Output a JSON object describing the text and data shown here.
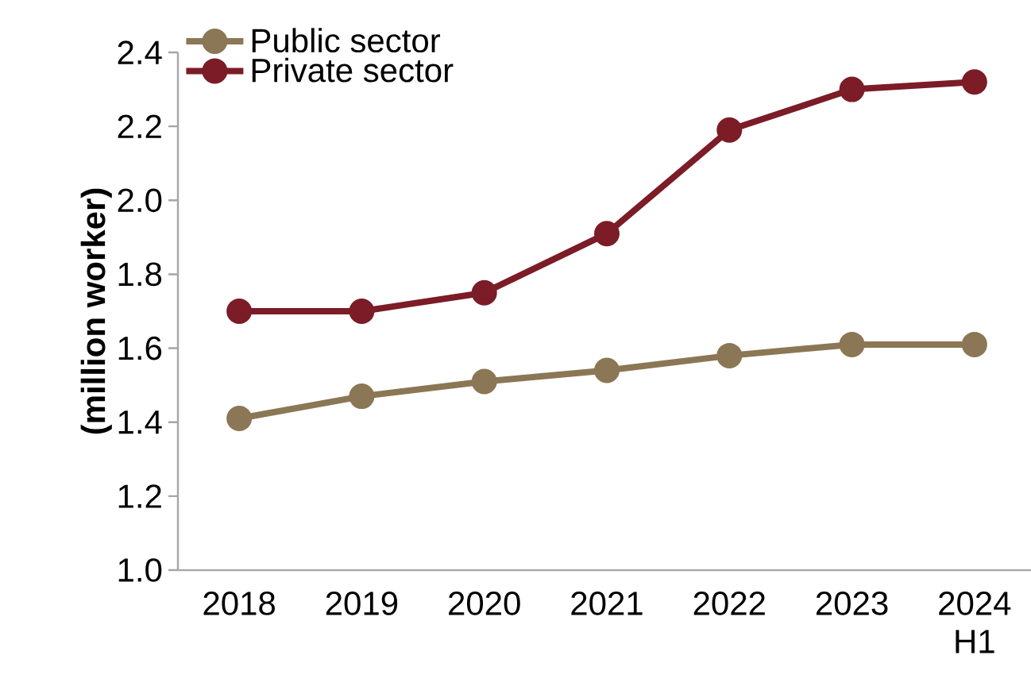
{
  "chart_data": {
    "type": "line",
    "ylabel": "(million worker)",
    "categories": [
      "2018",
      "2019",
      "2020",
      "2021",
      "2022",
      "2023",
      "2024 H1"
    ],
    "series": [
      {
        "name": "Public sector",
        "color": "#8b7755",
        "values": [
          1.41,
          1.47,
          1.51,
          1.54,
          1.58,
          1.61,
          1.61
        ]
      },
      {
        "name": "Private sector",
        "color": "#7b1c27",
        "values": [
          1.7,
          1.7,
          1.75,
          1.91,
          2.19,
          2.3,
          2.32
        ]
      }
    ],
    "ylim": [
      1.0,
      2.4
    ],
    "yticks": [
      {
        "value": 1.0,
        "label": "1.0"
      },
      {
        "value": 1.2,
        "label": "1.2"
      },
      {
        "value": 1.4,
        "label": "1.4"
      },
      {
        "value": 1.6,
        "label": "1.6"
      },
      {
        "value": 1.8,
        "label": "1.8"
      },
      {
        "value": 2.0,
        "label": "2.0"
      },
      {
        "value": 2.2,
        "label": "2.2"
      },
      {
        "value": 2.4,
        "label": "2.4"
      }
    ],
    "marker": "circle",
    "line_style": "solid",
    "legend": "top left",
    "grid": false
  }
}
